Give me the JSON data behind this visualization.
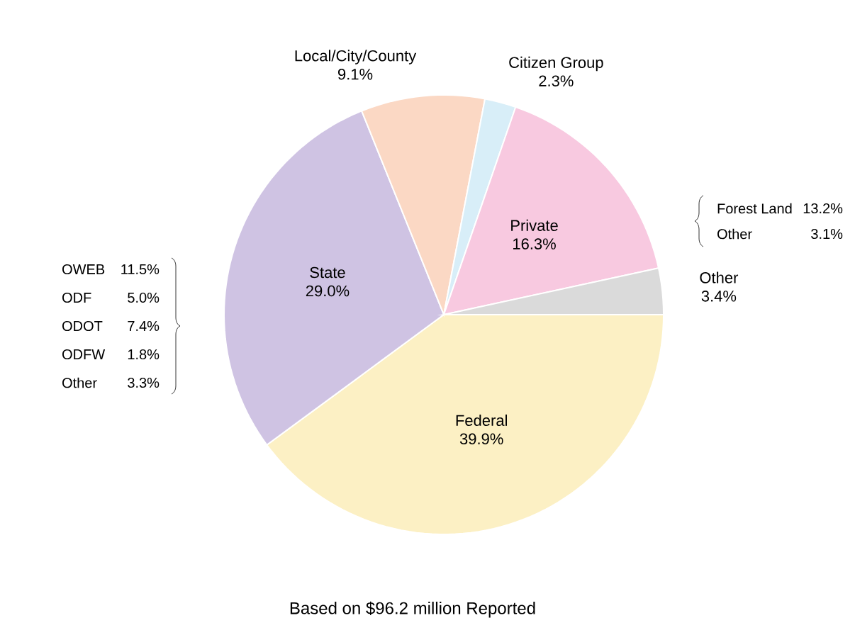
{
  "chart_data": {
    "type": "pie",
    "categories": [
      "Federal",
      "State",
      "Local/City/County",
      "Citizen Group",
      "Private",
      "Other"
    ],
    "values": [
      39.9,
      29.0,
      9.1,
      2.3,
      16.3,
      3.4
    ],
    "value_labels": [
      "39.9%",
      "29.0%",
      "9.1%",
      "2.3%",
      "16.3%",
      "3.4%"
    ],
    "colors": [
      "#fcf0c4",
      "#cfc3e3",
      "#fbd8c4",
      "#d8eef8",
      "#f8c9e0",
      "#dadada"
    ],
    "annotations": [
      "OWEB",
      "11.5%",
      "ODF",
      "5.0%",
      "ODOT",
      "7.4%",
      "ODFW",
      "1.8%",
      "Other",
      "3.3%",
      "Forest Land",
      "13.2%",
      "Other",
      "3.1%",
      "Based on $96.2 million Reported"
    ]
  }
}
